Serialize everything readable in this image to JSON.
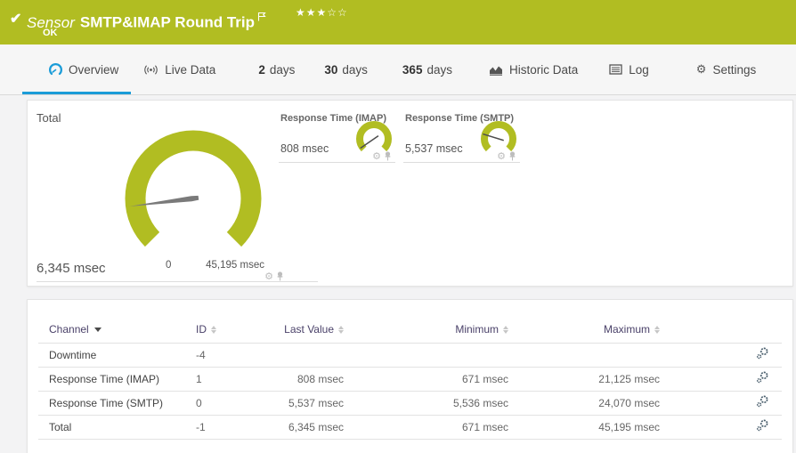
{
  "colors": {
    "accent_olive": "#b1bd22",
    "tab_blue": "#1b9cd8",
    "table_header": "#4a4169",
    "needle_gray": "#7a7a7a"
  },
  "banner": {
    "check_icon": "check-icon",
    "kind_label": "Sensor",
    "title": "SMTP&IMAP Round Trip",
    "status": "OK",
    "stars_filled_glyphs": "★★★",
    "stars_empty_glyphs": "☆☆"
  },
  "tabs": [
    {
      "label": "Overview",
      "active": true
    },
    {
      "label": "Live Data"
    },
    {
      "prefix": "2",
      "label": "days"
    },
    {
      "prefix": "30",
      "label": "days"
    },
    {
      "prefix": "365",
      "label": "days"
    },
    {
      "label": "Historic Data"
    },
    {
      "label": "Log"
    },
    {
      "label": "Settings"
    }
  ],
  "gauges": {
    "total": {
      "title": "Total",
      "value": "6,345 msec",
      "value_num": 6345,
      "min_label": "0",
      "max_label": "45,195 msec",
      "max_num": 45195
    },
    "imap": {
      "title": "Response Time (IMAP)",
      "value": "808 msec",
      "value_num": 808,
      "max_num": 21125
    },
    "smtp": {
      "title": "Response Time (SMTP)",
      "value": "5,537 msec",
      "value_num": 5537,
      "max_num": 24070
    }
  },
  "table": {
    "columns": {
      "channel": "Channel",
      "id": "ID",
      "last": "Last Value",
      "min": "Minimum",
      "max": "Maximum"
    },
    "rows": [
      {
        "channel": "Downtime",
        "id": "-4",
        "last": "",
        "min": "",
        "max": ""
      },
      {
        "channel": "Response Time (IMAP)",
        "id": "1",
        "last": "808 msec",
        "min": "671 msec",
        "max": "21,125 msec"
      },
      {
        "channel": "Response Time (SMTP)",
        "id": "0",
        "last": "5,537 msec",
        "min": "5,536 msec",
        "max": "24,070 msec"
      },
      {
        "channel": "Total",
        "id": "-1",
        "last": "6,345 msec",
        "min": "671 msec",
        "max": "45,195 msec"
      }
    ]
  }
}
